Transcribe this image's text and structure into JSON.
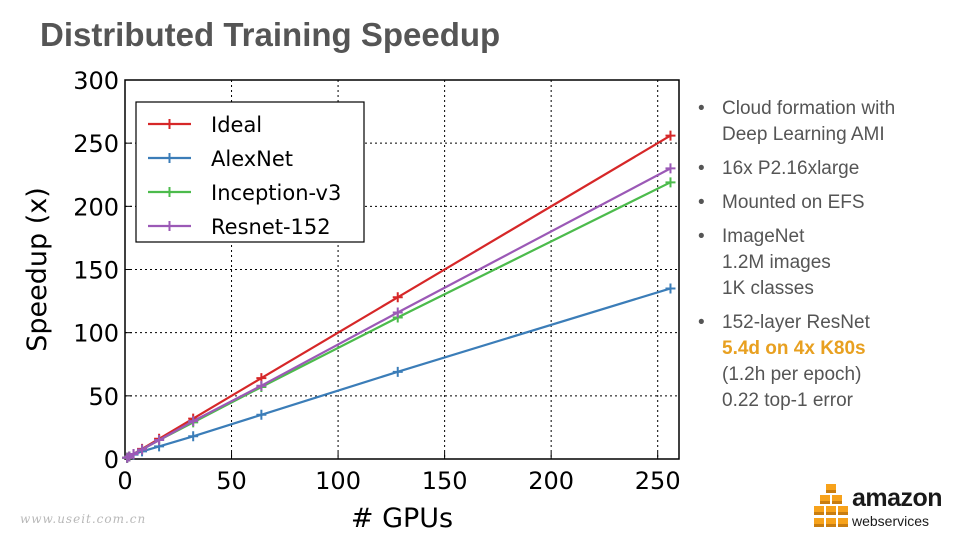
{
  "slide": {
    "title": "Distributed Training Speedup",
    "watermark": "www.useit.com.cn"
  },
  "bullets": [
    {
      "lines": [
        {
          "text": "Cloud formation with"
        },
        {
          "text": "Deep Learning AMI"
        }
      ]
    },
    {
      "lines": [
        {
          "text": "16x P2.16xlarge"
        }
      ]
    },
    {
      "lines": [
        {
          "text": "Mounted on EFS"
        }
      ]
    },
    {
      "lines": [
        {
          "text": "ImageNet"
        },
        {
          "text": "1.2M images"
        },
        {
          "text": "1K classes"
        }
      ]
    },
    {
      "lines": [
        {
          "text": "152-layer ResNet"
        },
        {
          "text": "5.4d on 4x K80s",
          "highlight": true
        },
        {
          "text": "(1.2h per epoch)"
        },
        {
          "text": "0.22 top-1 error"
        }
      ]
    }
  ],
  "logo": {
    "word": "amazon",
    "sub": "webservices",
    "icon": "aws-cubes-icon"
  },
  "colors": {
    "highlight": "#E8A020",
    "text": "#555555",
    "logo_orange": "#F7A21B"
  },
  "chart_data": {
    "type": "line",
    "xlabel": "# GPUs",
    "ylabel": "Speedup (x)",
    "xlim": [
      0,
      260
    ],
    "ylim": [
      0,
      300
    ],
    "xticks": [
      0,
      50,
      100,
      150,
      200,
      250
    ],
    "yticks": [
      0,
      50,
      100,
      150,
      200,
      250,
      300
    ],
    "grid": true,
    "legend": "top-left",
    "x": [
      1,
      2,
      4,
      8,
      16,
      32,
      64,
      128,
      256
    ],
    "series": [
      {
        "name": "Ideal",
        "color": "#D62728",
        "values": [
          1,
          2,
          4,
          8,
          16,
          32,
          64,
          128,
          256
        ]
      },
      {
        "name": "AlexNet",
        "color": "#3B7DB8",
        "values": [
          1,
          2,
          3.5,
          6,
          10,
          18,
          35,
          69,
          135
        ]
      },
      {
        "name": "Inception-v3",
        "color": "#4CBB4C",
        "values": [
          1,
          2,
          4,
          7.5,
          15,
          29,
          57,
          112,
          219
        ]
      },
      {
        "name": "Resnet-152",
        "color": "#9B59B6",
        "values": [
          1,
          2,
          4,
          7.5,
          15,
          30,
          58,
          116,
          230
        ]
      }
    ]
  }
}
